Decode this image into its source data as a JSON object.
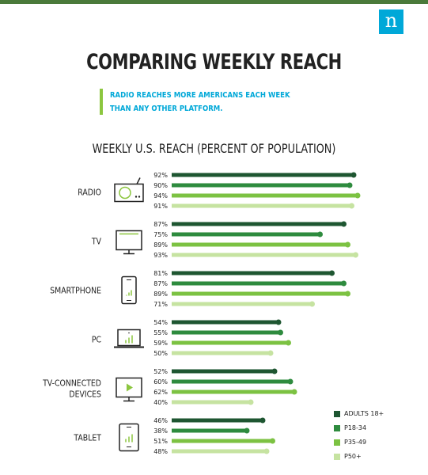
{
  "logo_text": "n",
  "title": "COMPARING WEEKLY REACH",
  "subtitle_lines": [
    "RADIO REACHES MORE AMERICANS EACH WEEK",
    "THAN ANY OTHER PLATFORM."
  ],
  "colors": {
    "accent_bar": "#8cc63f",
    "subtitle": "#00a8d8",
    "logo_bg": "#00a8d8",
    "top_bar": "#4a7a3a",
    "icon_stroke": "#222222",
    "icon_accent": "#8cc63f"
  },
  "icons": [
    "radio-icon",
    "tv-icon",
    "smartphone-icon",
    "pc-icon",
    "tv-connected-icon",
    "tablet-icon"
  ],
  "chart_data": {
    "type": "bar",
    "orientation": "horizontal",
    "title": "WEEKLY U.S. REACH (PERCENT OF POPULATION)",
    "xlim": [
      0,
      100
    ],
    "unit": "%",
    "grid": false,
    "legend_position": "bottom-right",
    "categories": [
      {
        "label_lines": [
          "RADIO"
        ]
      },
      {
        "label_lines": [
          "TV"
        ]
      },
      {
        "label_lines": [
          "SMARTPHONE"
        ]
      },
      {
        "label_lines": [
          "PC"
        ]
      },
      {
        "label_lines": [
          "TV-CONNECTED",
          "DEVICES"
        ]
      },
      {
        "label_lines": [
          "TABLET"
        ]
      }
    ],
    "series": [
      {
        "name": "ADULTS 18+",
        "color": "#1e5631",
        "values": [
          92,
          87,
          81,
          54,
          52,
          46
        ]
      },
      {
        "name": "P18-34",
        "color": "#2e8b3e",
        "values": [
          90,
          75,
          87,
          55,
          60,
          38
        ]
      },
      {
        "name": "P35-49",
        "color": "#7cc242",
        "values": [
          94,
          89,
          89,
          59,
          62,
          51
        ]
      },
      {
        "name": "P50+",
        "color": "#c6e3a1",
        "values": [
          91,
          93,
          71,
          50,
          40,
          48
        ]
      }
    ],
    "value_labels": [
      [
        "92%",
        "90%",
        "94%",
        "91%"
      ],
      [
        "87%",
        "75%",
        "89%",
        "93%"
      ],
      [
        "81%",
        "87%",
        "89%",
        "71%"
      ],
      [
        "54%",
        "55%",
        "59%",
        "50%"
      ],
      [
        "52%",
        "60%",
        "62%",
        "40%"
      ],
      [
        "46%",
        "38%",
        "51%",
        "48%"
      ]
    ],
    "legend_labels": [
      "ADULTS 18+",
      "P18-34",
      "P35-49",
      "P50+"
    ]
  }
}
